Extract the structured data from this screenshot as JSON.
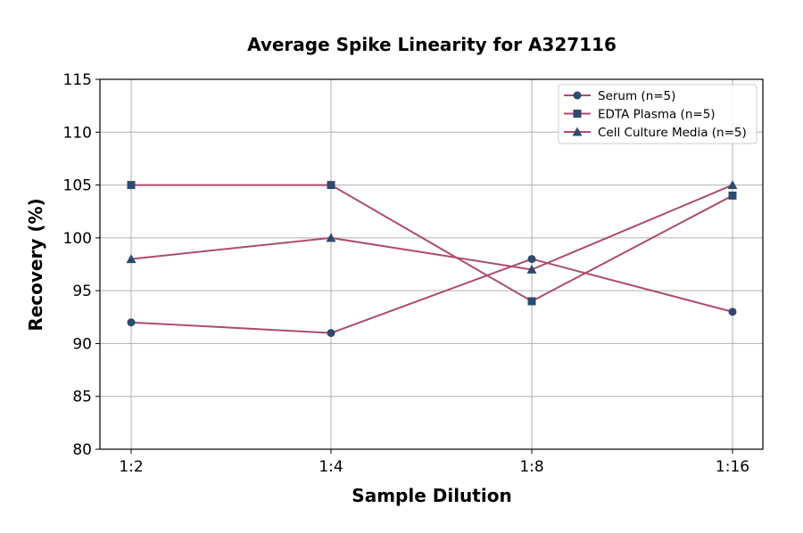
{
  "chart_data": {
    "type": "line",
    "title": "Average Spike Linearity for A327116",
    "xlabel": "Sample Dilution",
    "ylabel": "Recovery (%)",
    "categories": [
      "1:2",
      "1:4",
      "1:8",
      "1:16"
    ],
    "ylim": [
      80,
      115
    ],
    "yticks": [
      80,
      85,
      90,
      95,
      100,
      105,
      110,
      115
    ],
    "grid": true,
    "legend_position": "top-right",
    "line_color": "#b04a72",
    "marker_color": "#2e4a6e",
    "series": [
      {
        "name": "Serum (n=5)",
        "marker": "circle",
        "values": [
          92,
          91,
          98,
          93
        ]
      },
      {
        "name": "EDTA Plasma (n=5)",
        "marker": "square",
        "values": [
          105,
          105,
          94,
          104
        ]
      },
      {
        "name": "Cell Culture Media (n=5)",
        "marker": "triangle",
        "values": [
          98,
          100,
          97,
          105
        ]
      }
    ]
  }
}
